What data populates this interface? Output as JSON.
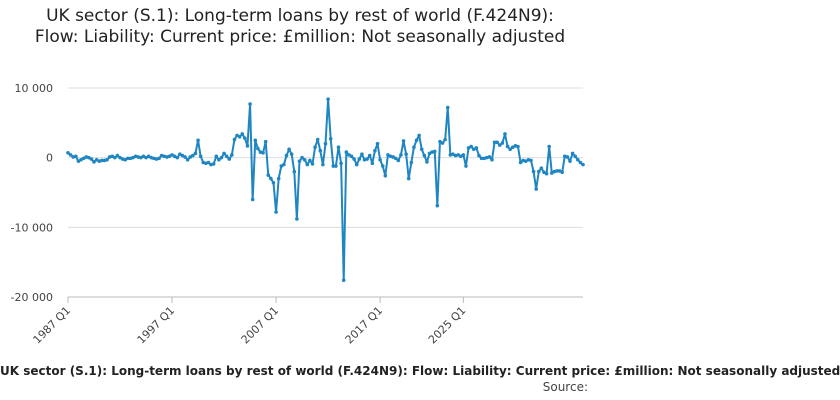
{
  "chart_data": {
    "type": "line",
    "title": "UK sector (S.1): Long-term loans by rest of world (F.424N9): Flow: Liability: Current price: £million: Not seasonally adjusted",
    "xlabel": "",
    "ylabel": "",
    "ylim": [
      -20000,
      10000
    ],
    "yticks": [
      10000,
      0,
      -10000,
      -20000
    ],
    "ytick_labels": [
      "10 000",
      "0",
      "-10 000",
      "-20 000"
    ],
    "xticks": [
      "1987 Q1",
      "1997 Q1",
      "2007 Q1",
      "2017 Q1",
      "2025 Q1"
    ],
    "grid": true,
    "legend": "bottom",
    "color": "#1f86c2",
    "series": [
      {
        "name": "UK sector (S.1): Long-term loans by rest of world (F.424N9): Flow: Liability: Current price: £million: Not seasonally adjusted",
        "values": [
          700,
          400,
          100,
          200,
          -500,
          -300,
          -100,
          100,
          0,
          -200,
          -600,
          -300,
          -500,
          -400,
          -400,
          -300,
          100,
          200,
          0,
          300,
          0,
          -200,
          -300,
          -100,
          -100,
          0,
          200,
          100,
          0,
          200,
          0,
          200,
          0,
          -100,
          -200,
          -100,
          300,
          200,
          100,
          200,
          400,
          200,
          0,
          500,
          300,
          100,
          -300,
          100,
          300,
          600,
          2500,
          200,
          -700,
          -800,
          -700,
          -1000,
          -900,
          200,
          -300,
          0,
          600,
          200,
          -200,
          400,
          2600,
          3200,
          3000,
          3400,
          2800,
          1700,
          7700,
          -6000,
          2500,
          1300,
          800,
          700,
          2300,
          -2500,
          -3000,
          -3600,
          -7800,
          -3000,
          -1200,
          -1000,
          300,
          1200,
          500,
          -2000,
          -8800,
          -500,
          0,
          -300,
          -1000,
          -400,
          -900,
          1500,
          2600,
          1000,
          -1000,
          2000,
          8400,
          2700,
          -1200,
          -1200,
          1500,
          -800,
          -17600,
          800,
          400,
          200,
          -200,
          -1000,
          -200,
          500,
          -300,
          -200,
          300,
          -800,
          1000,
          2000,
          -300,
          -1200,
          -2600,
          400,
          200,
          100,
          -100,
          -400,
          400,
          2400,
          500,
          -3000,
          -700,
          1500,
          2500,
          3200,
          1200,
          300,
          -600,
          600,
          800,
          900,
          -6900,
          2300,
          2100,
          2600,
          7200,
          400,
          500,
          300,
          400,
          200,
          400,
          -1200,
          1400,
          1600,
          1200,
          1400,
          300,
          -100,
          -100,
          0,
          100,
          -300,
          2200,
          2200,
          1800,
          2100,
          3400,
          1600,
          1200,
          1500,
          1700,
          1600,
          -700,
          -400,
          -500,
          -300,
          -400,
          -2000,
          -4500,
          -2000,
          -1500,
          -2100,
          -2300,
          1600,
          -2200,
          -2000,
          -1900,
          -1900,
          -2100,
          200,
          100,
          -500,
          600,
          200,
          -300,
          -700,
          -1000
        ]
      }
    ]
  },
  "legend_text": "UK sector (S.1): Long-term loans by rest of world (F.424N9): Flow: Liability: Current price: £million: Not seasonally adjusted",
  "source_text": "Source:"
}
